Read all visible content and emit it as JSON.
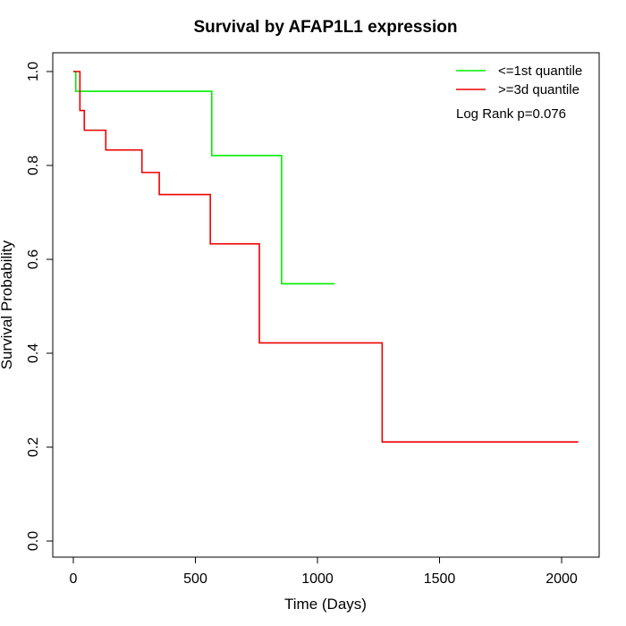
{
  "chart_data": {
    "type": "line",
    "step": true,
    "title": "Survival by AFAP1L1 expression",
    "xlabel": "Time (Days)",
    "ylabel": "Survival Probability",
    "xlim": [
      0,
      2070
    ],
    "ylim": [
      0,
      1
    ],
    "x_ticks": [
      {
        "value": 0,
        "label": "0"
      },
      {
        "value": 500,
        "label": "500"
      },
      {
        "value": 1000,
        "label": "1000"
      },
      {
        "value": 1500,
        "label": "1500"
      },
      {
        "value": 2000,
        "label": "2000"
      }
    ],
    "y_ticks": [
      {
        "value": 0.0,
        "label": "0.0"
      },
      {
        "value": 0.2,
        "label": "0.2"
      },
      {
        "value": 0.4,
        "label": "0.4"
      },
      {
        "value": 0.6,
        "label": "0.6"
      },
      {
        "value": 0.8,
        "label": "0.8"
      },
      {
        "value": 1.0,
        "label": "1.0"
      }
    ],
    "grid": false,
    "legend_position": "top-right",
    "annotation": "Log Rank p=0.076",
    "series": [
      {
        "name": "<=1st quantile",
        "color": "#00ee00",
        "points": [
          {
            "x": 0,
            "y": 1.0
          },
          {
            "x": 10,
            "y": 0.958
          },
          {
            "x": 567,
            "y": 0.821
          },
          {
            "x": 853,
            "y": 0.548
          },
          {
            "x": 1070,
            "y": 0.548
          }
        ]
      },
      {
        "name": ">=3d quantile",
        "color": "#ee0000",
        "points": [
          {
            "x": 0,
            "y": 1.0
          },
          {
            "x": 27,
            "y": 0.917
          },
          {
            "x": 45,
            "y": 0.875
          },
          {
            "x": 133,
            "y": 0.833
          },
          {
            "x": 281,
            "y": 0.785
          },
          {
            "x": 352,
            "y": 0.738
          },
          {
            "x": 561,
            "y": 0.633
          },
          {
            "x": 762,
            "y": 0.422
          },
          {
            "x": 1265,
            "y": 0.211
          },
          {
            "x": 2068,
            "y": 0.211
          }
        ]
      }
    ]
  }
}
